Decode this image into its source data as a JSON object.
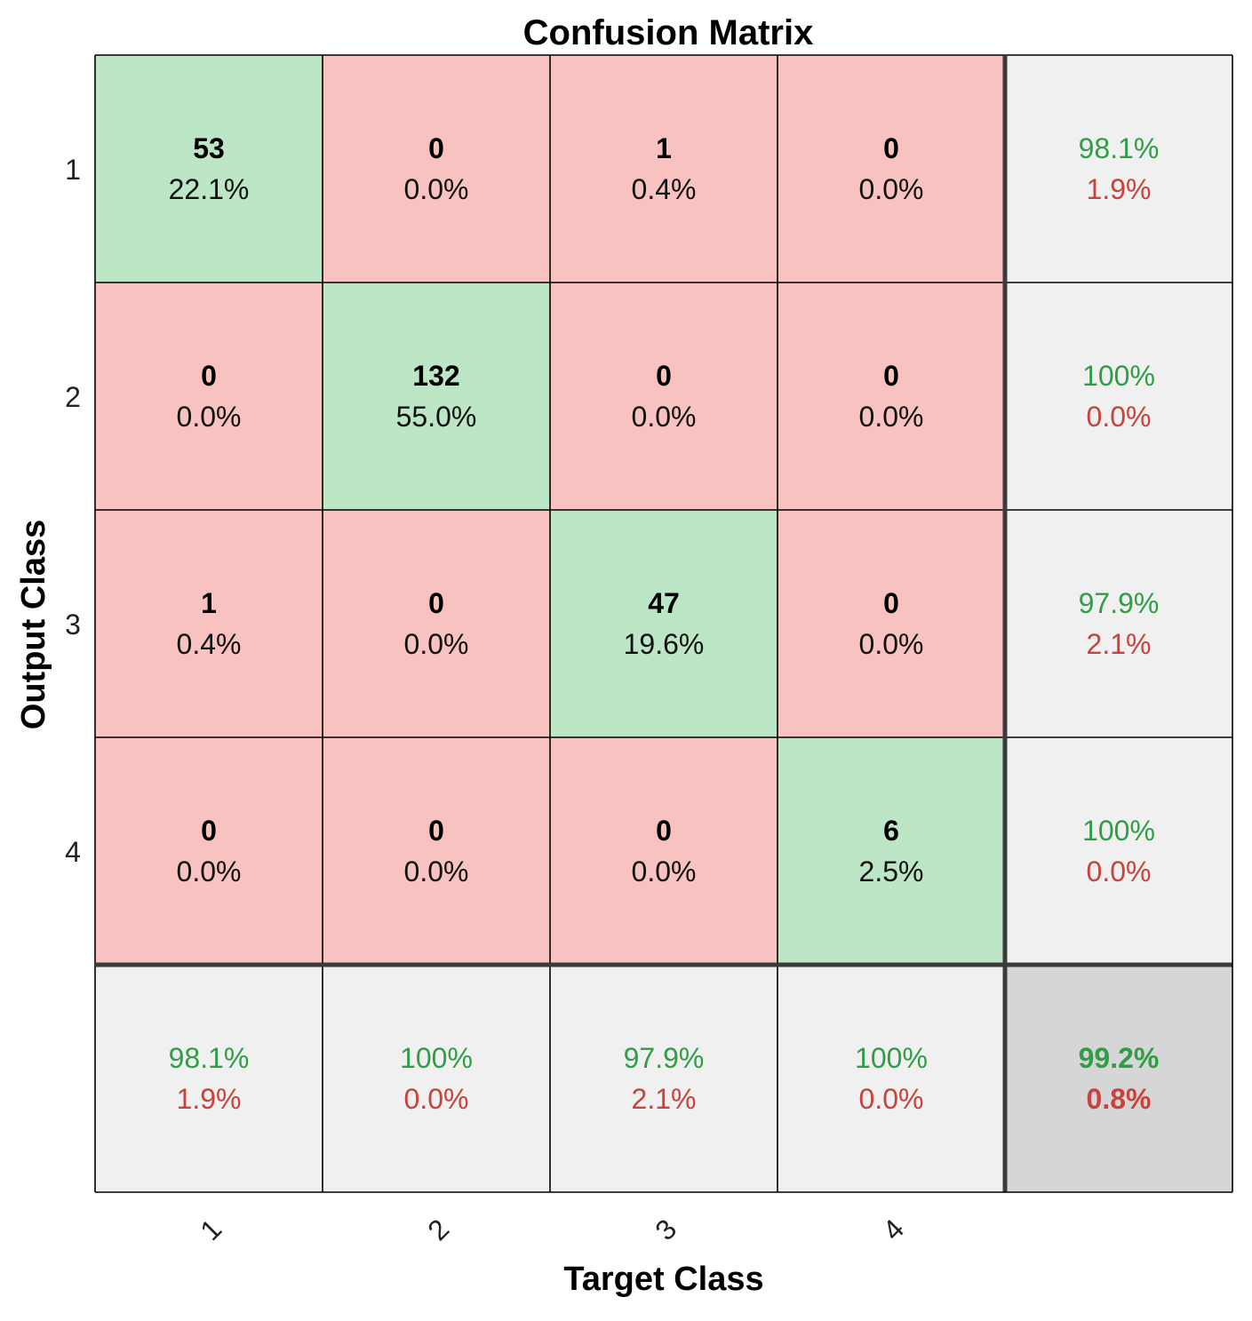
{
  "chart_data": {
    "type": "heatmap",
    "title": "Confusion Matrix",
    "xlabel": "Target Class",
    "ylabel": "Output Class",
    "x_ticks": [
      "1",
      "2",
      "3",
      "4"
    ],
    "y_ticks": [
      "1",
      "2",
      "3",
      "4"
    ],
    "counts": [
      [
        53,
        0,
        1,
        0
      ],
      [
        0,
        132,
        0,
        0
      ],
      [
        1,
        0,
        47,
        0
      ],
      [
        0,
        0,
        0,
        6
      ]
    ],
    "percents": [
      [
        "22.1%",
        "0.0%",
        "0.4%",
        "0.0%"
      ],
      [
        "0.0%",
        "55.0%",
        "0.0%",
        "0.0%"
      ],
      [
        "0.4%",
        "0.0%",
        "19.6%",
        "0.0%"
      ],
      [
        "0.0%",
        "0.0%",
        "0.0%",
        "2.5%"
      ]
    ],
    "row_summary": [
      {
        "correct": "98.1%",
        "error": "1.9%"
      },
      {
        "correct": "100%",
        "error": "0.0%"
      },
      {
        "correct": "97.9%",
        "error": "2.1%"
      },
      {
        "correct": "100%",
        "error": "0.0%"
      }
    ],
    "col_summary": [
      {
        "correct": "98.1%",
        "error": "1.9%"
      },
      {
        "correct": "100%",
        "error": "0.0%"
      },
      {
        "correct": "97.9%",
        "error": "2.1%"
      },
      {
        "correct": "100%",
        "error": "0.0%"
      }
    ],
    "overall": {
      "correct": "99.2%",
      "error": "0.8%"
    }
  },
  "colors": {
    "correct_cell": "#bde6c6",
    "incorrect_cell": "#f7c2bf",
    "summary_cell": "#f0f0f0",
    "overall_cell": "#d6d6d6",
    "grid": "#000000",
    "separator": "#3a3a3a",
    "good_text": "#2f9e44",
    "bad_text": "#c9423b"
  }
}
